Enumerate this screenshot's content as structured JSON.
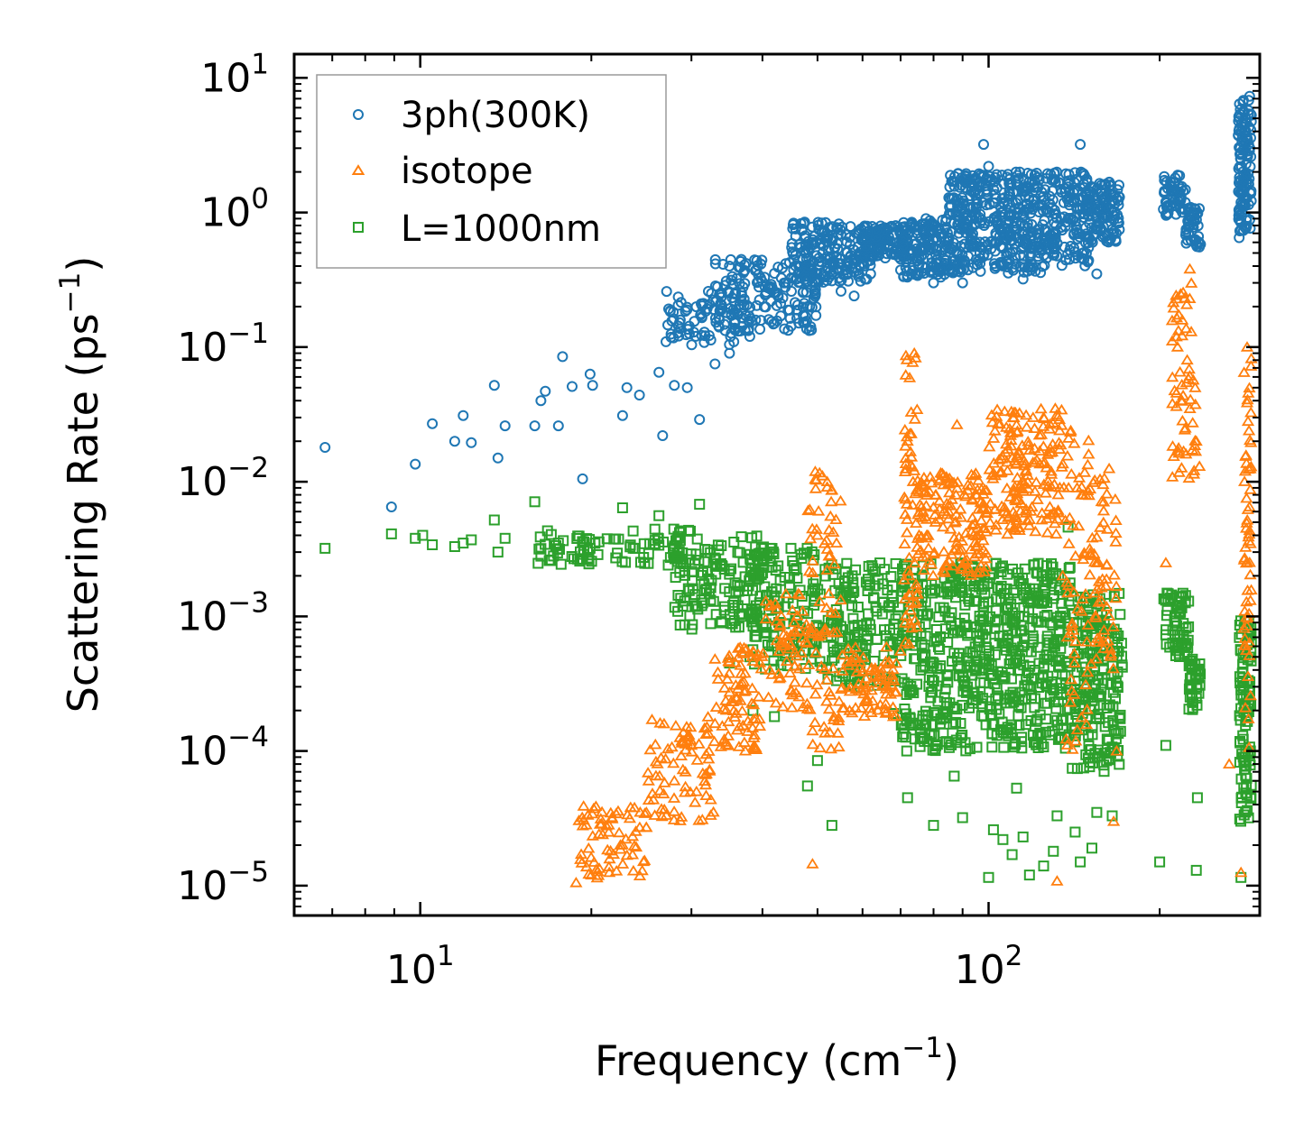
{
  "chart_data": {
    "type": "scatter",
    "xscale": "log",
    "yscale": "log",
    "xlabel": {
      "main": "Frequency (cm",
      "sup": "−1",
      "tail": ")"
    },
    "ylabel": {
      "main": "Scattering Rate (ps",
      "sup": "−1",
      "tail": ")"
    },
    "xlim": [
      6,
      300
    ],
    "ylim": [
      6e-06,
      15
    ],
    "x_major_ticks": [
      {
        "value": 10,
        "base": "10",
        "exp": "1"
      },
      {
        "value": 100,
        "base": "10",
        "exp": "2"
      }
    ],
    "y_major_ticks": [
      {
        "value": 10,
        "base": "10",
        "exp": "1"
      },
      {
        "value": 1,
        "base": "10",
        "exp": "0"
      },
      {
        "value": 0.1,
        "base": "10",
        "exp": "−1"
      },
      {
        "value": 0.01,
        "base": "10",
        "exp": "−2"
      },
      {
        "value": 0.001,
        "base": "10",
        "exp": "−3"
      },
      {
        "value": 0.0001,
        "base": "10",
        "exp": "−4"
      },
      {
        "value": 1e-05,
        "base": "10",
        "exp": "−5"
      }
    ],
    "legend_position": "top-left",
    "series": [
      {
        "name": "3ph(300K)",
        "marker": "circle",
        "color": "#1f77b4",
        "points": [
          [
            6.8,
            0.018
          ],
          [
            8.9,
            0.0065
          ],
          [
            9.8,
            0.0135
          ],
          [
            10.5,
            0.027
          ],
          [
            11.5,
            0.02
          ],
          [
            11.9,
            0.031
          ],
          [
            12.3,
            0.0195
          ],
          [
            13.5,
            0.052
          ],
          [
            13.7,
            0.015
          ],
          [
            14.1,
            0.026
          ],
          [
            15.9,
            0.026
          ],
          [
            16.3,
            0.04
          ],
          [
            16.6,
            0.047
          ],
          [
            17.5,
            0.026
          ],
          [
            17.8,
            0.085
          ],
          [
            18.5,
            0.051
          ],
          [
            19.3,
            0.0105
          ],
          [
            19.9,
            0.063
          ],
          [
            20.1,
            0.052
          ],
          [
            22.7,
            0.031
          ],
          [
            23.1,
            0.05
          ],
          [
            24.3,
            0.044
          ],
          [
            26.3,
            0.065
          ],
          [
            26.7,
            0.022
          ],
          [
            28,
            0.052
          ],
          [
            29.5,
            0.05
          ],
          [
            31,
            0.029
          ],
          [
            33,
            0.075
          ],
          [
            35,
            0.09
          ],
          [
            38,
            0.12
          ],
          [
            42,
            0.15
          ],
          [
            48,
            0.2
          ],
          [
            55,
            0.26
          ],
          [
            58,
            0.24
          ],
          [
            62,
            0.35
          ],
          [
            70,
            0.45
          ],
          [
            75,
            0.34
          ],
          [
            80,
            0.3
          ],
          [
            84,
            0.44
          ],
          [
            90,
            0.3
          ],
          [
            93,
            0.56
          ],
          [
            98,
            3.2
          ],
          [
            100,
            2.2
          ],
          [
            108,
            0.5
          ],
          [
            115,
            0.32
          ],
          [
            120,
            0.55
          ],
          [
            130,
            0.7
          ],
          [
            138,
            0.9
          ],
          [
            145,
            3.2
          ],
          [
            150,
            0.44
          ],
          [
            155,
            0.35
          ],
          [
            165,
            0.75
          ],
          [
            170,
            1.3
          ],
          [
            205,
            1.2
          ],
          [
            213,
            1.8
          ],
          [
            218,
            1.5
          ],
          [
            225,
            0.7
          ],
          [
            233,
            1.0
          ],
          [
            236,
            0.58
          ],
          [
            276,
            0.65
          ],
          [
            282,
            4
          ],
          [
            288,
            7.3
          ]
        ],
        "bands": [
          {
            "x": [
              27,
              36
            ],
            "y": [
              0.1,
              0.26
            ],
            "n": 70
          },
          {
            "x": [
              33,
              50
            ],
            "y": [
              0.13,
              0.45
            ],
            "n": 180
          },
          {
            "x": [
              45,
              62
            ],
            "y": [
              0.3,
              0.85
            ],
            "n": 200
          },
          {
            "x": [
              60,
              72
            ],
            "y": [
              0.45,
              0.8
            ],
            "n": 120
          },
          {
            "x": [
              70,
              85
            ],
            "y": [
              0.33,
              0.9
            ],
            "n": 150
          },
          {
            "x": [
              85,
              125
            ],
            "y": [
              0.35,
              2.0
            ],
            "n": 420
          },
          {
            "x": [
              125,
              150
            ],
            "y": [
              0.4,
              2.0
            ],
            "n": 160
          },
          {
            "x": [
              150,
              170
            ],
            "y": [
              0.6,
              1.7
            ],
            "n": 110
          },
          {
            "x": [
              203,
              222
            ],
            "y": [
              0.95,
              1.9
            ],
            "n": 50
          },
          {
            "x": [
              222,
              235
            ],
            "y": [
              0.55,
              1.1
            ],
            "n": 45
          },
          {
            "x": [
              275,
              290
            ],
            "y": [
              0.7,
              7.0
            ],
            "n": 120
          }
        ]
      },
      {
        "name": "isotope",
        "marker": "triangle",
        "color": "#ff7f0e",
        "points": [
          [
            18.8,
            1.05e-05
          ],
          [
            20,
            1.2e-05
          ],
          [
            22.5,
            2e-05
          ],
          [
            25,
            3.5e-05
          ],
          [
            28,
            6e-05
          ],
          [
            30,
            0.00011
          ],
          [
            33,
            0.00016
          ],
          [
            36,
            0.00025
          ],
          [
            38.5,
            0.00055
          ],
          [
            41,
            0.00025
          ],
          [
            43,
            0.00035
          ],
          [
            45,
            0.00028
          ],
          [
            49,
            1.45e-05
          ],
          [
            50,
            0.004
          ],
          [
            52,
            0.01
          ],
          [
            54,
            0.0035
          ],
          [
            58,
            0.0005
          ],
          [
            62,
            0.0004
          ],
          [
            68,
            0.00018
          ],
          [
            72,
            0.02
          ],
          [
            74,
            0.09
          ],
          [
            77,
            0.0022
          ],
          [
            85,
            0.006
          ],
          [
            88,
            0.0265
          ],
          [
            95,
            0.008
          ],
          [
            110,
            0.015
          ],
          [
            125,
            0.03
          ],
          [
            131,
            0.035
          ],
          [
            132,
            1.08e-05
          ],
          [
            135,
            0.002
          ],
          [
            150,
            0.016
          ],
          [
            155,
            0.0025
          ],
          [
            163,
            0.0125
          ],
          [
            166,
            3e-05
          ],
          [
            168,
            0.0001
          ],
          [
            205,
            0.0025
          ],
          [
            215,
            0.1
          ],
          [
            218,
            0.04
          ],
          [
            222,
            0.025
          ],
          [
            226,
            0.38
          ],
          [
            232,
            0.02
          ],
          [
            235,
            0.013
          ],
          [
            265,
            8e-05
          ],
          [
            278,
            1.25e-05
          ],
          [
            285,
            0.1
          ]
        ],
        "bands": [
          {
            "x": [
              19,
              25
            ],
            "y": [
              1.1e-05,
              4e-05
            ],
            "n": 70
          },
          {
            "x": [
              25,
              33
            ],
            "y": [
              3e-05,
              0.00018
            ],
            "n": 80
          },
          {
            "x": [
              33,
              40
            ],
            "y": [
              0.0001,
              0.0006
            ],
            "n": 80
          },
          {
            "x": [
              40,
              48
            ],
            "y": [
              0.0002,
              0.0015
            ],
            "n": 60
          },
          {
            "x": [
              48,
              55
            ],
            "y": [
              0.0001,
              0.012
            ],
            "n": 80
          },
          {
            "x": [
              55,
              70
            ],
            "y": [
              0.00018,
              0.0006
            ],
            "n": 80
          },
          {
            "x": [
              71,
              75
            ],
            "y": [
              0.0005,
              0.09
            ],
            "n": 60
          },
          {
            "x": [
              75,
              100
            ],
            "y": [
              0.002,
              0.012
            ],
            "n": 160
          },
          {
            "x": [
              100,
              135
            ],
            "y": [
              0.004,
              0.035
            ],
            "n": 180
          },
          {
            "x": [
              135,
              150
            ],
            "y": [
              0.0001,
              0.025
            ],
            "n": 60
          },
          {
            "x": [
              150,
              168
            ],
            "y": [
              0.0004,
              0.012
            ],
            "n": 60
          },
          {
            "x": [
              210,
              232
            ],
            "y": [
              0.01,
              0.3
            ],
            "n": 60
          },
          {
            "x": [
              281,
              290
            ],
            "y": [
              0.0001,
              0.1
            ],
            "n": 60
          }
        ]
      },
      {
        "name": "L=1000nm",
        "marker": "square",
        "color": "#2ca02c",
        "points": [
          [
            6.8,
            0.0032
          ],
          [
            8.9,
            0.0041
          ],
          [
            9.8,
            0.0038
          ],
          [
            10.1,
            0.004
          ],
          [
            10.5,
            0.0034
          ],
          [
            11.5,
            0.0033
          ],
          [
            11.9,
            0.0035
          ],
          [
            12.3,
            0.0037
          ],
          [
            13.5,
            0.0052
          ],
          [
            13.7,
            0.003
          ],
          [
            14.1,
            0.0038
          ],
          [
            15.9,
            0.0071
          ],
          [
            16.3,
            0.0028
          ],
          [
            17.5,
            0.0035
          ],
          [
            19.9,
            0.0032
          ],
          [
            22.7,
            0.0064
          ],
          [
            26.3,
            0.0056
          ],
          [
            31,
            0.0068
          ],
          [
            35,
            0.00045
          ],
          [
            38.5,
            0.0002
          ],
          [
            42,
            0.00018
          ],
          [
            48,
            5.5e-05
          ],
          [
            50,
            8.5e-05
          ],
          [
            53,
            2.8e-05
          ],
          [
            58,
            0.0007
          ],
          [
            62,
            0.0008
          ],
          [
            68,
            0.00019
          ],
          [
            72,
            4.5e-05
          ],
          [
            76,
            0.0004
          ],
          [
            80,
            2.8e-05
          ],
          [
            87,
            6.5e-05
          ],
          [
            90,
            3.2e-05
          ],
          [
            95,
            0.00024
          ],
          [
            100,
            1.15e-05
          ],
          [
            102,
            2.6e-05
          ],
          [
            106,
            2.2e-05
          ],
          [
            110,
            1.7e-05
          ],
          [
            112,
            5.3e-05
          ],
          [
            115,
            2.3e-05
          ],
          [
            118,
            1.2e-05
          ],
          [
            125,
            1.4e-05
          ],
          [
            130,
            1.8e-05
          ],
          [
            132,
            3.3e-05
          ],
          [
            138,
            0.0046
          ],
          [
            142,
            2.5e-05
          ],
          [
            145,
            1.5e-05
          ],
          [
            152,
            1.9e-05
          ],
          [
            155,
            3.5e-05
          ],
          [
            165,
            3.3e-05
          ],
          [
            200,
            1.5e-05
          ],
          [
            205,
            0.00011
          ],
          [
            232,
            1.3e-05
          ],
          [
            233,
            4.5e-05
          ],
          [
            278,
            1.15e-05
          ]
        ],
        "bands": [
          {
            "x": [
              16,
              30
            ],
            "y": [
              0.0024,
              0.0045
            ],
            "n": 90
          },
          {
            "x": [
              28,
              40
            ],
            "y": [
              0.0008,
              0.004
            ],
            "n": 130
          },
          {
            "x": [
              38,
              50
            ],
            "y": [
              0.0004,
              0.0035
            ],
            "n": 140
          },
          {
            "x": [
              50,
              70
            ],
            "y": [
              0.0003,
              0.0025
            ],
            "n": 160
          },
          {
            "x": [
              70,
              100
            ],
            "y": [
              0.0001,
              0.0025
            ],
            "n": 320
          },
          {
            "x": [
              100,
              140
            ],
            "y": [
              0.0001,
              0.0025
            ],
            "n": 320
          },
          {
            "x": [
              140,
              172
            ],
            "y": [
              7e-05,
              0.0015
            ],
            "n": 200
          },
          {
            "x": [
              203,
              225
            ],
            "y": [
              0.0005,
              0.0015
            ],
            "n": 60
          },
          {
            "x": [
              225,
              236
            ],
            "y": [
              0.0002,
              0.0005
            ],
            "n": 40
          },
          {
            "x": [
              276,
              290
            ],
            "y": [
              3e-05,
              0.001
            ],
            "n": 100
          }
        ]
      }
    ]
  }
}
